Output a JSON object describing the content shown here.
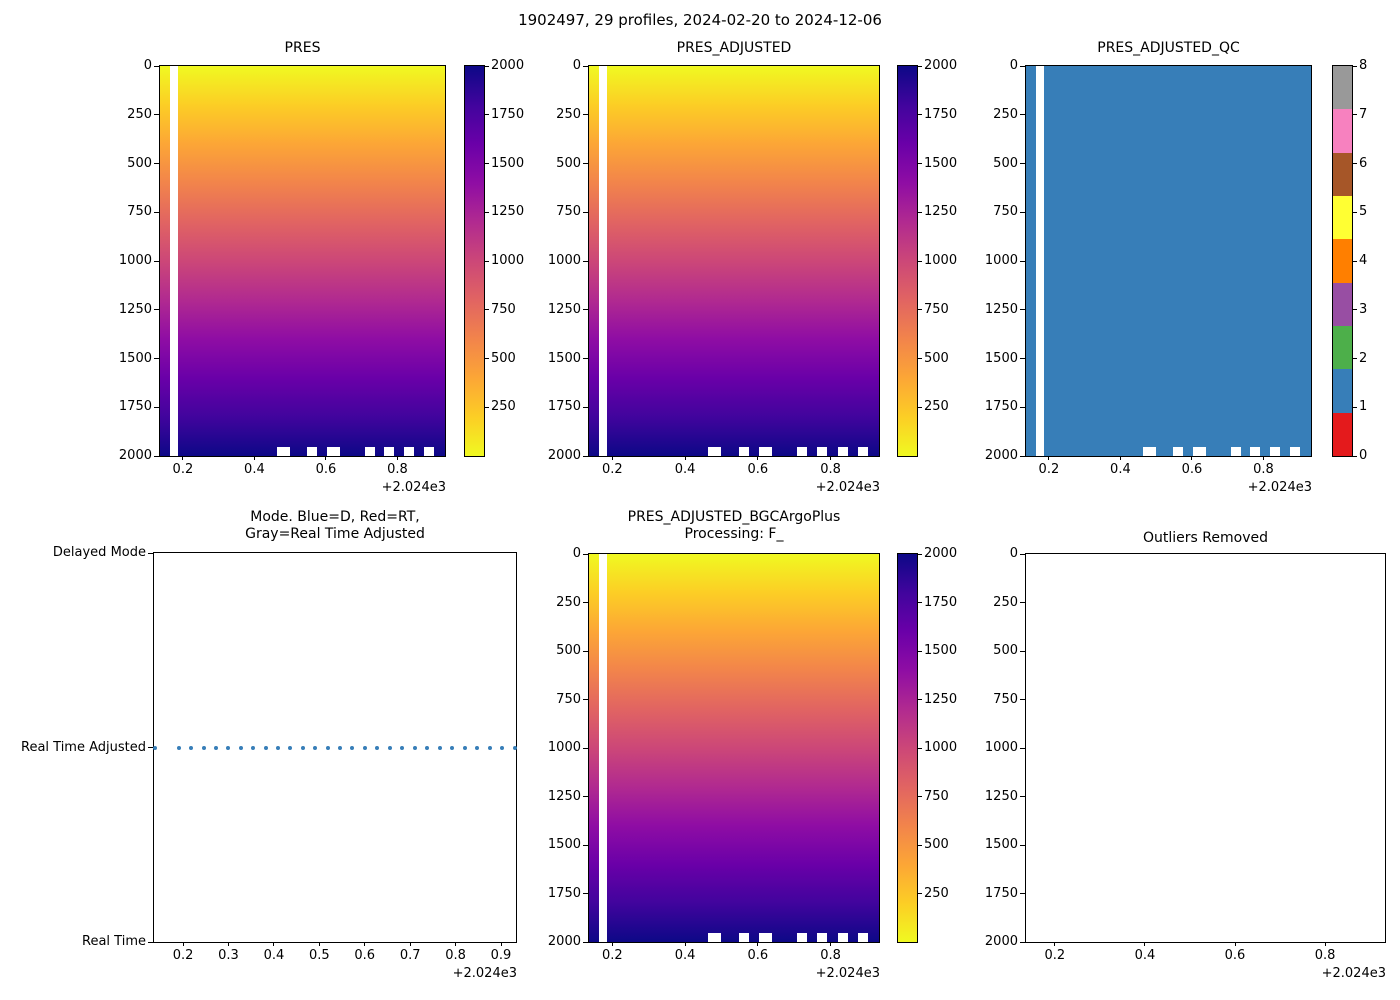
{
  "figure": {
    "suptitle": "1902497, 29 profiles, 2024-02-20 to 2024-12-06",
    "background": "#ffffff"
  },
  "colors": {
    "plasma_top_to_bottom": [
      "#f0f921",
      "#fcce25",
      "#fca636",
      "#f2844b",
      "#e16462",
      "#cc4778",
      "#b12a90",
      "#8f0da4",
      "#6a00a8",
      "#41049d",
      "#0d0887"
    ],
    "qc_body": "#377eb8",
    "qc_set1": [
      "#e41a1c",
      "#377eb8",
      "#4daf4a",
      "#984ea3",
      "#ff7f00",
      "#ffff33",
      "#a65628",
      "#f781bf",
      "#999999"
    ],
    "mode_dot": "#377eb8",
    "axis": "#000000"
  },
  "chart_data": [
    {
      "id": "pres",
      "type": "heatmap",
      "title": "PRES",
      "n_profiles": 29,
      "values_description": "Pressure equals depth: 0 dbar at surface grading to ~2000 dbar at bottom, same for all 29 profiles",
      "colormap": "plasma reversed (yellow=0, dark navy=2000)",
      "x_axis": {
        "lim": [
          2024.136,
          2024.933
        ],
        "tick_values": [
          2024.2,
          2024.4,
          2024.6,
          2024.8
        ],
        "tick_labels": [
          "0.2",
          "0.4",
          "0.6",
          "0.8"
        ],
        "offset_label": "+2.024e3"
      },
      "y_axis": {
        "lim": [
          0,
          2000
        ],
        "tick_values": [
          0,
          250,
          500,
          750,
          1000,
          1250,
          1500,
          1750,
          2000
        ],
        "tick_labels": [
          "0",
          "250",
          "500",
          "750",
          "1000",
          "1250",
          "1500",
          "1750",
          "2000"
        ]
      },
      "colorbar": {
        "type": "continuous",
        "range": [
          0,
          2000
        ],
        "tick_values": [
          250,
          500,
          750,
          1000,
          1250,
          1500,
          1750,
          2000
        ]
      },
      "missing_data": {
        "profile_gap_x": [
          2024.164,
          2024.185
        ],
        "bottom_gaps_depth": [
          1955,
          2000
        ],
        "bottom_gaps_x": [
          [
            2024.464,
            2024.499
          ],
          [
            2024.547,
            2024.575
          ],
          [
            2024.602,
            2024.639
          ],
          [
            2024.708,
            2024.736
          ],
          [
            2024.763,
            2024.791
          ],
          [
            2024.819,
            2024.847
          ],
          [
            2024.875,
            2024.903
          ]
        ]
      }
    },
    {
      "id": "pres_adjusted",
      "type": "heatmap",
      "title": "PRES_ADJUSTED",
      "n_profiles": 29,
      "values_description": "Adjusted pressure, identical pattern to PRES: 0 to ~2000 dbar top to bottom",
      "colormap": "plasma reversed (yellow=0, dark navy=2000)",
      "x_axis": {
        "lim": [
          2024.136,
          2024.933
        ],
        "tick_values": [
          2024.2,
          2024.4,
          2024.6,
          2024.8
        ],
        "tick_labels": [
          "0.2",
          "0.4",
          "0.6",
          "0.8"
        ],
        "offset_label": "+2.024e3"
      },
      "y_axis": {
        "lim": [
          0,
          2000
        ],
        "tick_values": [
          0,
          250,
          500,
          750,
          1000,
          1250,
          1500,
          1750,
          2000
        ],
        "tick_labels": [
          "0",
          "250",
          "500",
          "750",
          "1000",
          "1250",
          "1500",
          "1750",
          "2000"
        ]
      },
      "colorbar": {
        "type": "continuous",
        "range": [
          0,
          2000
        ],
        "tick_values": [
          250,
          500,
          750,
          1000,
          1250,
          1500,
          1750,
          2000
        ]
      },
      "missing_data": {
        "profile_gap_x": [
          2024.164,
          2024.185
        ],
        "bottom_gaps_depth": [
          1955,
          2000
        ],
        "bottom_gaps_x": [
          [
            2024.464,
            2024.499
          ],
          [
            2024.547,
            2024.575
          ],
          [
            2024.602,
            2024.639
          ],
          [
            2024.708,
            2024.736
          ],
          [
            2024.763,
            2024.791
          ],
          [
            2024.819,
            2024.847
          ],
          [
            2024.875,
            2024.903
          ]
        ]
      }
    },
    {
      "id": "pres_adjusted_qc",
      "type": "heatmap",
      "title": "PRES_ADJUSTED_QC",
      "n_profiles": 29,
      "values_description": "QC flag = 1 (good data) for every cell; rendered solid Set1 blue",
      "fill_value": 1,
      "colormap": "Set1 discrete, 9 classes for QC flags 0-8",
      "x_axis": {
        "lim": [
          2024.136,
          2024.933
        ],
        "tick_values": [
          2024.2,
          2024.4,
          2024.6,
          2024.8
        ],
        "tick_labels": [
          "0.2",
          "0.4",
          "0.6",
          "0.8"
        ],
        "offset_label": "+2.024e3"
      },
      "y_axis": {
        "lim": [
          0,
          2000
        ],
        "tick_values": [
          0,
          250,
          500,
          750,
          1000,
          1250,
          1500,
          1750,
          2000
        ],
        "tick_labels": [
          "0",
          "250",
          "500",
          "750",
          "1000",
          "1250",
          "1500",
          "1750",
          "2000"
        ]
      },
      "colorbar": {
        "type": "discrete",
        "range": [
          0,
          8
        ],
        "tick_values": [
          0,
          1,
          2,
          3,
          4,
          5,
          6,
          7,
          8
        ],
        "segment_values_bottom_to_top": [
          0,
          1,
          2,
          3,
          4,
          5,
          6,
          7,
          8
        ],
        "segment_colors_bottom_to_top": [
          "#e41a1c",
          "#377eb8",
          "#4daf4a",
          "#984ea3",
          "#ff7f00",
          "#ffff33",
          "#a65628",
          "#f781bf",
          "#999999"
        ]
      },
      "missing_data": {
        "profile_gap_x": [
          2024.164,
          2024.185
        ],
        "bottom_gaps_depth": [
          1955,
          2000
        ],
        "bottom_gaps_x": [
          [
            2024.464,
            2024.499
          ],
          [
            2024.547,
            2024.575
          ],
          [
            2024.602,
            2024.639
          ],
          [
            2024.708,
            2024.736
          ],
          [
            2024.763,
            2024.791
          ],
          [
            2024.819,
            2024.847
          ],
          [
            2024.875,
            2024.903
          ]
        ]
      }
    },
    {
      "id": "mode",
      "type": "scatter",
      "title": "Mode. Blue=D, Red=RT,\nGray=Real Time Adjusted",
      "values_description": "All 29 profiles are in Real Time Adjusted mode (one dot per profile)",
      "x_axis": {
        "lim": [
          2024.136,
          2024.933
        ],
        "tick_values": [
          2024.2,
          2024.3,
          2024.4,
          2024.5,
          2024.6,
          2024.7,
          2024.8,
          2024.9
        ],
        "tick_labels": [
          "0.2",
          "0.3",
          "0.4",
          "0.5",
          "0.6",
          "0.7",
          "0.8",
          "0.9"
        ],
        "offset_label": "+2.024e3"
      },
      "y_axis": {
        "lim": [
          0,
          2
        ],
        "tick_values": [
          0,
          1,
          2
        ],
        "tick_labels": [
          "Delayed Mode",
          "Real Time Adjusted",
          "Real Time"
        ]
      },
      "points": {
        "y_label": "Real Time Adjusted",
        "y_value": 1,
        "x_values": [
          2024.139,
          2024.19,
          2024.217,
          2024.245,
          2024.272,
          2024.299,
          2024.327,
          2024.354,
          2024.382,
          2024.409,
          2024.436,
          2024.464,
          2024.491,
          2024.519,
          2024.546,
          2024.573,
          2024.601,
          2024.628,
          2024.656,
          2024.683,
          2024.71,
          2024.738,
          2024.765,
          2024.793,
          2024.82,
          2024.847,
          2024.875,
          2024.902,
          2024.93
        ]
      }
    },
    {
      "id": "bgc",
      "type": "heatmap",
      "title": "PRES_ADJUSTED_BGCArgoPlus\nProcessing: F_",
      "n_profiles": 29,
      "values_description": "BGC-Argo-Plus processed adjusted pressure: 0 to ~2000 dbar top to bottom",
      "colormap": "plasma reversed (yellow=0, dark navy=2000)",
      "x_axis": {
        "lim": [
          2024.136,
          2024.933
        ],
        "tick_values": [
          2024.2,
          2024.4,
          2024.6,
          2024.8
        ],
        "tick_labels": [
          "0.2",
          "0.4",
          "0.6",
          "0.8"
        ],
        "offset_label": "+2.024e3"
      },
      "y_axis": {
        "lim": [
          0,
          2000
        ],
        "tick_values": [
          0,
          250,
          500,
          750,
          1000,
          1250,
          1500,
          1750,
          2000
        ],
        "tick_labels": [
          "0",
          "250",
          "500",
          "750",
          "1000",
          "1250",
          "1500",
          "1750",
          "2000"
        ]
      },
      "colorbar": {
        "type": "continuous",
        "range": [
          0,
          2000
        ],
        "tick_values": [
          250,
          500,
          750,
          1000,
          1250,
          1500,
          1750,
          2000
        ]
      },
      "missing_data": {
        "profile_gap_x": [
          2024.164,
          2024.185
        ],
        "bottom_gaps_depth": [
          1955,
          2000
        ],
        "bottom_gaps_x": [
          [
            2024.464,
            2024.499
          ],
          [
            2024.547,
            2024.575
          ],
          [
            2024.602,
            2024.639
          ],
          [
            2024.708,
            2024.736
          ],
          [
            2024.763,
            2024.791
          ],
          [
            2024.819,
            2024.847
          ],
          [
            2024.875,
            2024.903
          ]
        ]
      }
    },
    {
      "id": "outliers",
      "type": "empty",
      "title": "Outliers Removed",
      "values_description": "No data plotted - no outliers were removed",
      "x_axis": {
        "lim": [
          2024.136,
          2024.933
        ],
        "tick_values": [
          2024.2,
          2024.4,
          2024.6,
          2024.8
        ],
        "tick_labels": [
          "0.2",
          "0.4",
          "0.6",
          "0.8"
        ],
        "offset_label": "+2.024e3"
      },
      "y_axis": {
        "lim": [
          0,
          2000
        ],
        "tick_values": [
          0,
          250,
          500,
          750,
          1000,
          1250,
          1500,
          1750,
          2000
        ],
        "tick_labels": [
          "0",
          "250",
          "500",
          "750",
          "1000",
          "1250",
          "1500",
          "1750",
          "2000"
        ]
      }
    }
  ]
}
